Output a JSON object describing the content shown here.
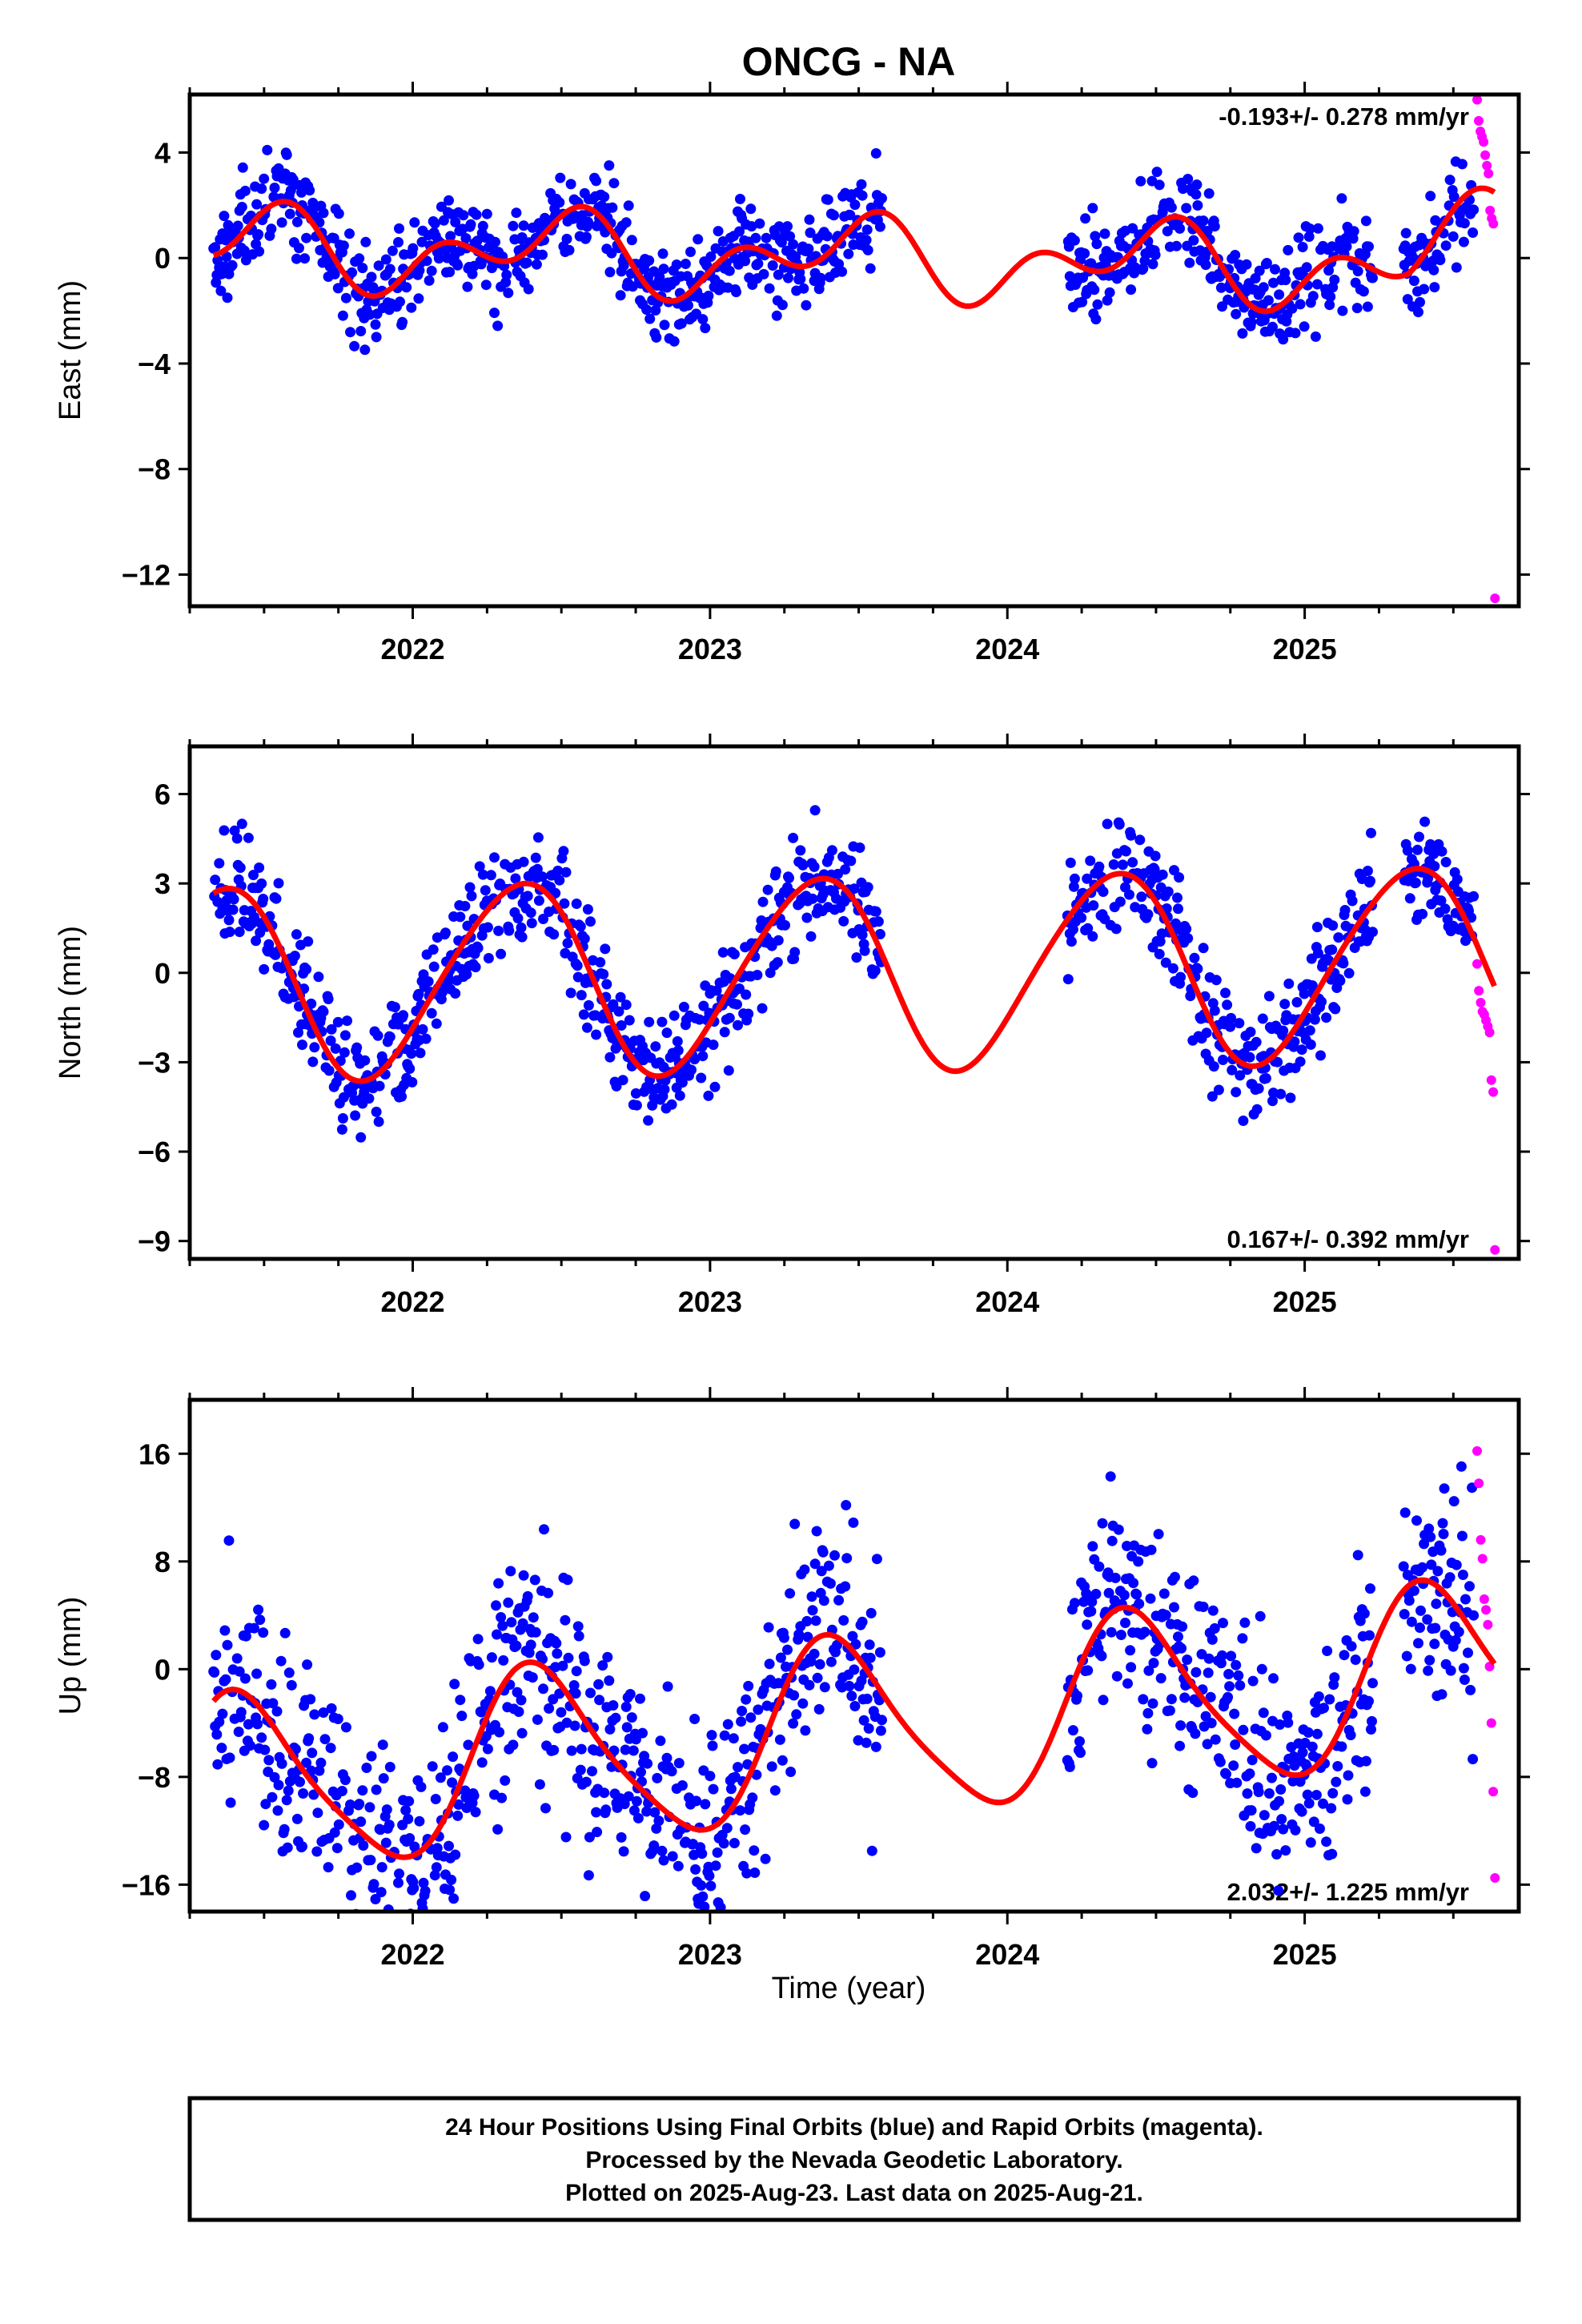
{
  "chart_data": {
    "type": "scatter",
    "title": "ONCG - NA",
    "x_label": "Time (year)",
    "x_ticks": [
      "2022",
      "2023",
      "2024",
      "2025"
    ],
    "xlim": [
      2021.25,
      2025.72
    ],
    "colors": {
      "final_orbits": "#0000ff",
      "rapid_orbits": "#ff00ff",
      "model_fit": "#ff0000"
    },
    "panels": [
      {
        "key": "east",
        "ylabel": "East (mm)",
        "ylim": [
          -13.2,
          6.2
        ],
        "yticks": [
          "4",
          "0",
          "−4",
          "−8",
          "−12"
        ],
        "ytick_values": [
          4,
          0,
          -4,
          -8,
          -12
        ],
        "rate_label": "-0.193+/- 0.278 mm/yr",
        "rate_position": "top-right",
        "fit_params": {
          "offset": 0.0,
          "rate": -0.193,
          "annual_sin": 0.2,
          "annual_cos": -1.0,
          "semi_sin": 0.9,
          "semi_cos": 0.4,
          "end_ramp": 1.6
        },
        "scatter_noise_mm": 0.9,
        "rapid_points_y": [
          6.0,
          5.2,
          4.8,
          4.6,
          4.4,
          3.9,
          3.5,
          3.2,
          1.8,
          1.5,
          1.3,
          -12.9
        ]
      },
      {
        "key": "north",
        "ylabel": "North (mm)",
        "ylim": [
          -9.6,
          7.6
        ],
        "yticks": [
          "6",
          "3",
          "0",
          "−3",
          "−6",
          "−9"
        ],
        "ytick_values": [
          6,
          3,
          0,
          -3,
          -6,
          -9
        ],
        "rate_label": "0.167+/- 0.392 mm/yr",
        "rate_position": "bottom-right",
        "fit_params": {
          "offset": 0.0,
          "rate": 0.167,
          "annual_sin": 2.6,
          "annual_cos": -1.9,
          "semi_sin": 0.0,
          "semi_cos": 0.3,
          "end_ramp": 0.0
        },
        "scatter_noise_mm": 1.0,
        "rapid_points_y": [
          0.3,
          -0.6,
          -1.0,
          -1.3,
          -1.4,
          -1.6,
          -1.8,
          -2.0,
          -3.6,
          -4.0,
          -9.3
        ]
      },
      {
        "key": "up",
        "ylabel": "Up (mm)",
        "ylim": [
          -18,
          20
        ],
        "yticks": [
          "16",
          "8",
          "0",
          "−8",
          "−16"
        ],
        "ytick_values": [
          16,
          8,
          0,
          -8,
          -16
        ],
        "rate_label": "2.032+/- 1.225 mm/yr",
        "rate_position": "bottom-right",
        "fit_params": {
          "offset": -4.5,
          "rate": 2.032,
          "annual_sin": 3.0,
          "annual_cos": -5.8,
          "semi_sin": -1.0,
          "semi_cos": -0.5,
          "end_ramp": 0.0
        },
        "scatter_noise_mm": 4.2,
        "rapid_points_y": [
          16.2,
          13.8,
          9.6,
          8.2,
          5.2,
          4.4,
          3.3,
          0.2,
          -4.0,
          -9.1,
          -15.5
        ]
      }
    ],
    "data_gaps": [
      [
        2023.58,
        2024.2
      ],
      [
        2025.23,
        2025.33
      ]
    ],
    "final_orbits_range": [
      2021.33,
      2025.57
    ],
    "rapid_orbits_range": [
      2025.58,
      2025.64
    ]
  },
  "footer": {
    "line1": "24 Hour Positions Using Final Orbits (blue) and Rapid Orbits (magenta).",
    "line2": "Processed by the Nevada Geodetic Laboratory.",
    "line3": "Plotted on 2025-Aug-23. Last data on 2025-Aug-21."
  }
}
